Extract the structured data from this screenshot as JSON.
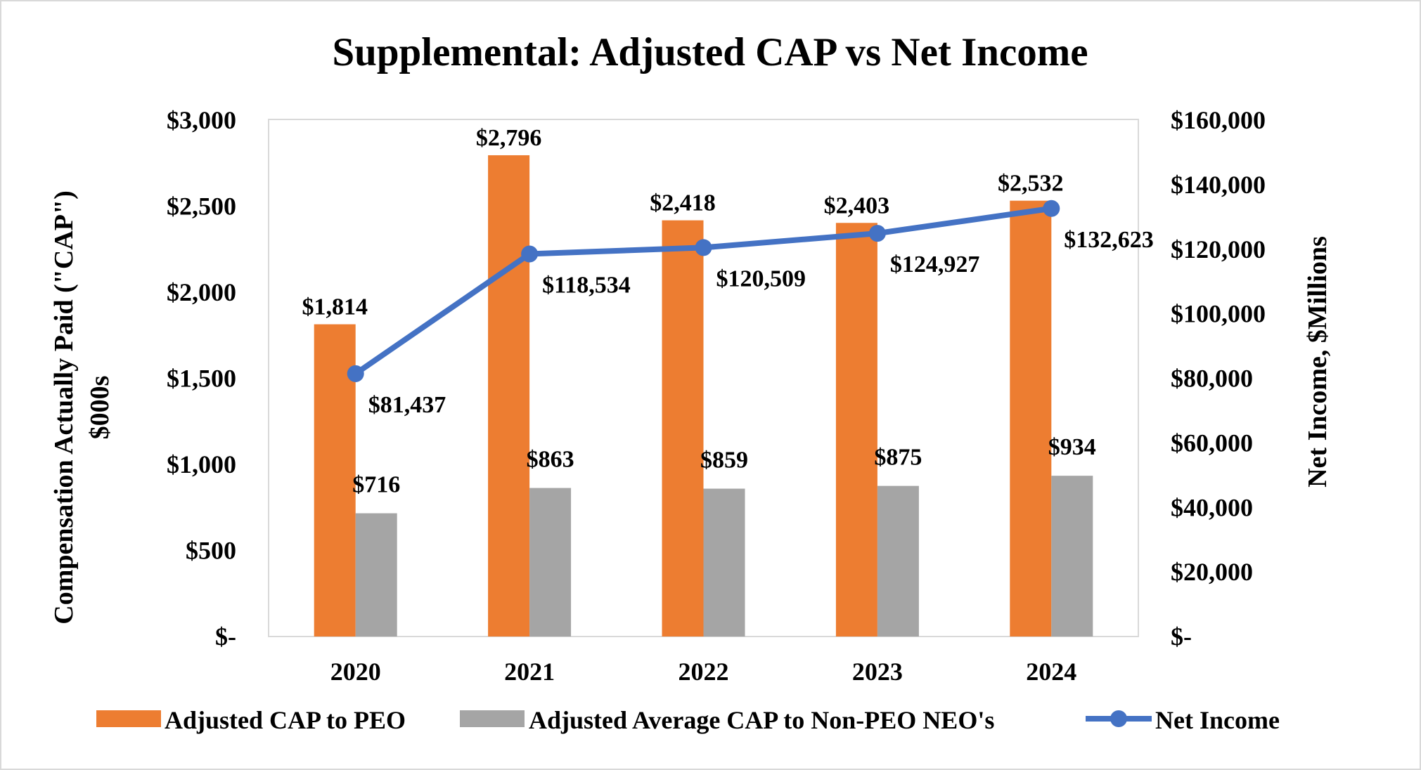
{
  "chart_data": {
    "type": "bar+line",
    "title": "Supplemental: Adjusted CAP vs Net Income",
    "ylabel_left": [
      "Compensation  Actually  Paid (\"CAP\")",
      "$000s"
    ],
    "ylabel_right": "Net Income, $Millions",
    "categories": [
      "2020",
      "2021",
      "2022",
      "2023",
      "2024"
    ],
    "y_left": {
      "range": [
        0,
        3000
      ],
      "ticks": [
        "$-",
        "$500",
        "$1,000",
        "$1,500",
        "$2,000",
        "$2,500",
        "$3,000"
      ]
    },
    "y_right": {
      "range": [
        0,
        160000
      ],
      "ticks": [
        "$-",
        "$20,000",
        "$40,000",
        "$60,000",
        "$80,000",
        "$100,000",
        "$120,000",
        "$140,000",
        "$160,000"
      ]
    },
    "grid": false,
    "legend_position": "bottom",
    "series": [
      {
        "name": "Adjusted CAP to PEO",
        "type": "bar",
        "axis": "left",
        "color": "#ED7D31",
        "values": [
          1814,
          2796,
          2418,
          2403,
          2532
        ],
        "labels": [
          "$1,814",
          "$2,796",
          "$2,418",
          "$2,403",
          "$2,532"
        ]
      },
      {
        "name": "Adjusted Average CAP to Non-PEO NEO's",
        "type": "bar",
        "axis": "left",
        "color": "#A5A5A5",
        "values": [
          716,
          863,
          859,
          875,
          934
        ],
        "labels": [
          "$716",
          "$863",
          "$859",
          "$875",
          "$934"
        ]
      },
      {
        "name": "Net Income",
        "type": "line",
        "axis": "right",
        "color": "#4472C4",
        "values": [
          81437,
          118534,
          120509,
          124927,
          132623
        ],
        "labels": [
          "$81,437",
          "$118,534",
          "$120,509",
          "$124,927",
          "$132,623"
        ]
      }
    ]
  }
}
